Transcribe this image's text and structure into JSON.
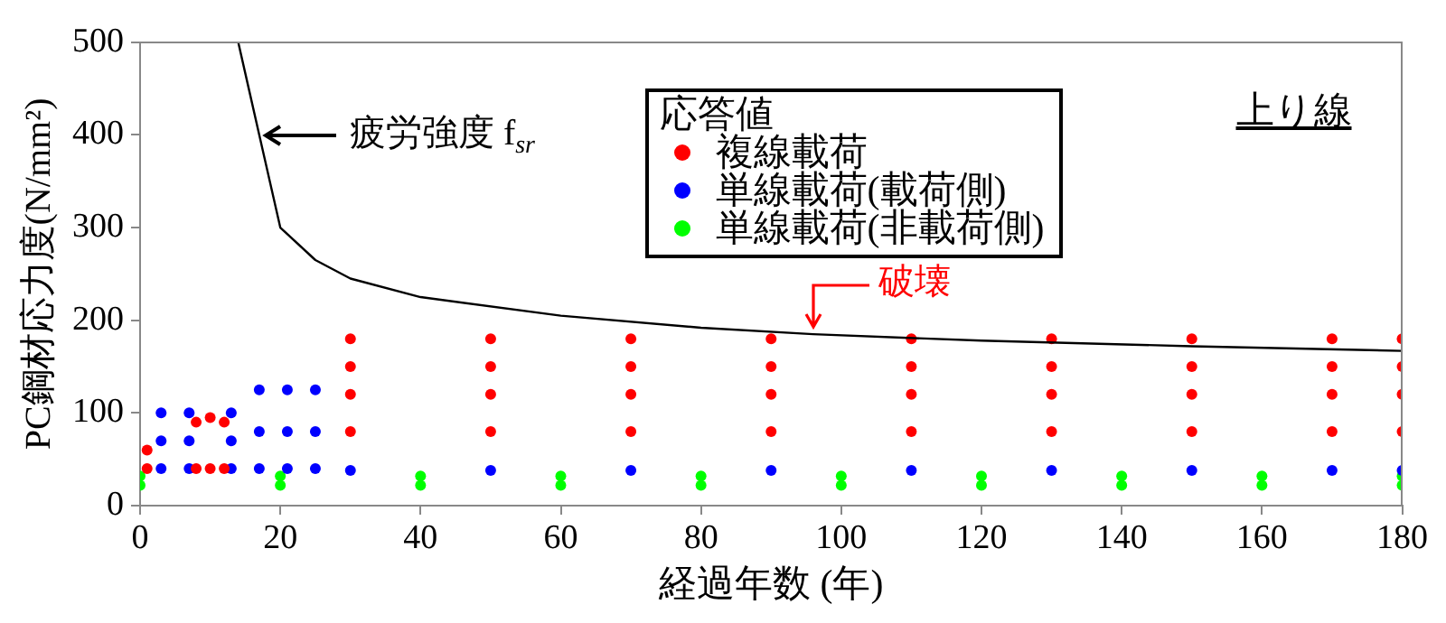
{
  "chart_data": {
    "type": "scatter",
    "xlabel": "経過年数 (年)",
    "ylabel": "PC鋼材応力度(N/mm²)",
    "legend_title": "応答値",
    "legend": "top",
    "marker": "circle",
    "grid": false,
    "xlim": [
      0,
      180
    ],
    "xticks": [
      0,
      20,
      40,
      60,
      80,
      100,
      120,
      140,
      160,
      180
    ],
    "ylim": [
      0,
      500
    ],
    "yticks": [
      0,
      100,
      200,
      300,
      400,
      500
    ],
    "series": [
      {
        "name": "複線載荷",
        "color": "#ff0000",
        "x": [
          1,
          1,
          8,
          8,
          10,
          10,
          12,
          12,
          30,
          30,
          30,
          30,
          50,
          50,
          50,
          50,
          70,
          70,
          70,
          70,
          90,
          90,
          90,
          90,
          110,
          110,
          110,
          110,
          130,
          130,
          130,
          130,
          150,
          150,
          150,
          150,
          170,
          170,
          170,
          170,
          180,
          180,
          180,
          180
        ],
        "values": [
          40,
          60,
          40,
          90,
          40,
          95,
          40,
          90,
          80,
          120,
          150,
          180,
          80,
          120,
          150,
          180,
          80,
          120,
          150,
          180,
          80,
          120,
          150,
          180,
          80,
          120,
          150,
          180,
          80,
          120,
          150,
          180,
          80,
          120,
          150,
          180,
          80,
          120,
          150,
          180,
          80,
          120,
          150,
          180
        ]
      },
      {
        "name": "単線載荷(載荷側)",
        "color": "#0000ff",
        "x": [
          3,
          3,
          3,
          7,
          7,
          7,
          13,
          13,
          13,
          17,
          17,
          17,
          21,
          21,
          21,
          25,
          25,
          25,
          30,
          50,
          70,
          90,
          110,
          130,
          150,
          170,
          180
        ],
        "values": [
          40,
          70,
          100,
          40,
          70,
          100,
          40,
          70,
          100,
          40,
          80,
          125,
          40,
          80,
          125,
          40,
          80,
          125,
          38,
          38,
          38,
          38,
          38,
          38,
          38,
          38,
          38
        ]
      },
      {
        "name": "単線載荷(非載荷側)",
        "color": "#00ff00",
        "x": [
          0,
          20,
          40,
          60,
          80,
          100,
          120,
          140,
          160,
          180,
          0,
          20,
          40,
          60,
          80,
          100,
          120,
          140,
          160,
          180
        ],
        "values": [
          22,
          22,
          22,
          22,
          22,
          22,
          22,
          22,
          22,
          22,
          32,
          32,
          32,
          32,
          32,
          32,
          32,
          32,
          32,
          32
        ]
      },
      {
        "type": "line",
        "marker": "none",
        "color": "#000000",
        "x": [
          14,
          15.5,
          17,
          20,
          25,
          30,
          40,
          60,
          80,
          96,
          120,
          150,
          180
        ],
        "values": [
          500,
          450,
          400,
          300,
          265,
          245,
          225,
          205,
          192,
          185,
          178,
          172,
          167
        ]
      }
    ],
    "annotations": [
      {
        "text": "疲労強度 f$_{sr}$",
        "x": 17,
        "y": 400
      },
      {
        "text": "破壊",
        "x": 96,
        "y": 185
      },
      "上り線"
    ]
  }
}
